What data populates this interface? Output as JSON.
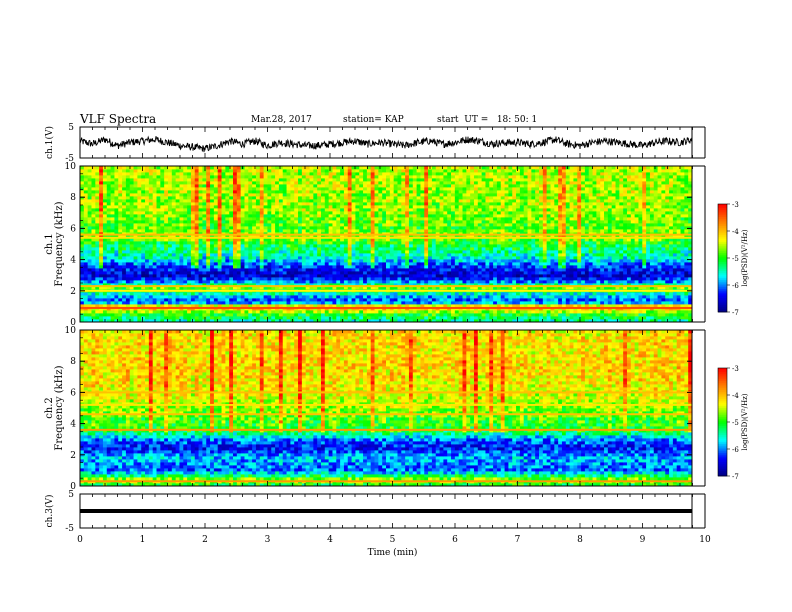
{
  "header": {
    "title": "VLF Spectra",
    "date": "Mar.28, 2017",
    "station": "station= KAP",
    "start": "start  UT =   18: 50: 1"
  },
  "chart_data": [
    {
      "type": "line",
      "panel": "ch1-waveform",
      "ylabel": "ch.1(V)",
      "ylim": [
        -5,
        5
      ],
      "yticks": [
        "5",
        "-5"
      ],
      "xlim": [
        0,
        10
      ],
      "series": [
        {
          "x": [
            0,
            0.2,
            0.4,
            0.6,
            0.8,
            1.0,
            1.2,
            1.4,
            1.6,
            1.8,
            2.0,
            2.2,
            2.4,
            2.6,
            2.8,
            3.0,
            3.2,
            3.4,
            3.6,
            3.8,
            4.0,
            4.2,
            4.4,
            4.6,
            4.8,
            5.0,
            5.2,
            5.4,
            5.6,
            5.8,
            6.0,
            6.2,
            6.4,
            6.6,
            6.8,
            7.0,
            7.2,
            7.4,
            7.6,
            7.8,
            8.0,
            8.2,
            8.4,
            8.6,
            8.8,
            9.0,
            9.2,
            9.4,
            9.6,
            9.8
          ],
          "y": [
            0.5,
            -0.5,
            1.0,
            -1.0,
            0.0,
            0.5,
            1.0,
            0.0,
            -1.0,
            -1.5,
            -2.0,
            -1.0,
            0.5,
            -0.5,
            0.5,
            -1.0,
            0.0,
            -0.5,
            -1.0,
            -1.0,
            -0.5,
            0.0,
            0.5,
            -0.5,
            0.0,
            -0.5,
            -1.0,
            0.0,
            0.5,
            -0.5,
            0.0,
            1.0,
            0.5,
            -0.5,
            0.0,
            0.0,
            -0.5,
            0.0,
            1.0,
            -0.5,
            -1.0,
            0.0,
            0.5,
            0.0,
            -0.5,
            -1.0,
            0.0,
            0.5,
            0.0,
            1.0
          ]
        }
      ]
    },
    {
      "type": "heatmap",
      "panel": "ch1-spectrogram",
      "ylabel": "ch.1 Frequency (kHz)",
      "ylim": [
        0,
        10
      ],
      "yticks": [
        "0",
        "2",
        "4",
        "6",
        "8",
        "10"
      ],
      "xlim": [
        0,
        10
      ],
      "colorbar": {
        "label": "log(PSD)(V²/Hz)",
        "range": [
          -7,
          -3
        ],
        "ticks": [
          "-3",
          "-4",
          "-5",
          "-6",
          "-7"
        ]
      },
      "profile": [
        {
          "f": 0.0,
          "v": -5.5
        },
        {
          "f": 0.5,
          "v": -5.0
        },
        {
          "f": 1.0,
          "v": -3.8
        },
        {
          "f": 1.3,
          "v": -6.3
        },
        {
          "f": 1.8,
          "v": -5.6
        },
        {
          "f": 2.2,
          "v": -4.7
        },
        {
          "f": 2.5,
          "v": -5.8
        },
        {
          "f": 3.0,
          "v": -6.6
        },
        {
          "f": 3.6,
          "v": -6.2
        },
        {
          "f": 4.2,
          "v": -5.5
        },
        {
          "f": 5.0,
          "v": -5.1
        },
        {
          "f": 5.5,
          "v": -4.6
        },
        {
          "f": 6.0,
          "v": -4.8
        },
        {
          "f": 7.5,
          "v": -4.6
        },
        {
          "f": 10.0,
          "v": -4.5
        }
      ],
      "bands": [
        {
          "f": 0.9,
          "v": -3.4
        },
        {
          "f": 2.3,
          "v": -4.0
        },
        {
          "f": 5.4,
          "v": -4.2
        },
        {
          "f": 5.6,
          "v": -4.0
        },
        {
          "f": 2.0,
          "v": -4.3
        }
      ]
    },
    {
      "type": "heatmap",
      "panel": "ch2-spectrogram",
      "ylabel": "ch.2 Frequency (kHz)",
      "ylim": [
        0,
        10
      ],
      "yticks": [
        "0",
        "2",
        "4",
        "6",
        "8",
        "10"
      ],
      "xlim": [
        0,
        10
      ],
      "colorbar": {
        "label": "log(PSD)(V²/Hz)",
        "range": [
          -7,
          -3
        ],
        "ticks": [
          "-3",
          "-4",
          "-5",
          "-6",
          "-7"
        ]
      },
      "profile": [
        {
          "f": 0.0,
          "v": -5.2
        },
        {
          "f": 0.4,
          "v": -4.5
        },
        {
          "f": 1.0,
          "v": -6.1
        },
        {
          "f": 1.8,
          "v": -5.8
        },
        {
          "f": 2.5,
          "v": -6.4
        },
        {
          "f": 3.0,
          "v": -6.0
        },
        {
          "f": 3.6,
          "v": -5.0
        },
        {
          "f": 4.2,
          "v": -4.9
        },
        {
          "f": 5.0,
          "v": -4.6
        },
        {
          "f": 6.0,
          "v": -4.3
        },
        {
          "f": 7.5,
          "v": -4.1
        },
        {
          "f": 10.0,
          "v": -4.2
        }
      ],
      "bands": [
        {
          "f": 3.6,
          "v": -3.8
        },
        {
          "f": 5.2,
          "v": -4.2
        },
        {
          "f": 6.0,
          "v": -4.0
        },
        {
          "f": 4.6,
          "v": -4.0
        },
        {
          "f": 0.3,
          "v": -3.8
        }
      ]
    },
    {
      "type": "line",
      "panel": "ch3-waveform",
      "ylabel": "ch.3(V)",
      "ylim": [
        -5,
        5
      ],
      "yticks": [
        "5",
        "-5"
      ],
      "xlim": [
        0,
        10
      ],
      "series": [
        {
          "x": [
            0,
            9.8
          ],
          "y": [
            0,
            0
          ]
        }
      ],
      "xlabel": "Time  (min)",
      "xticks": [
        "0",
        "1",
        "2",
        "3",
        "4",
        "5",
        "6",
        "7",
        "8",
        "9",
        "10"
      ]
    }
  ],
  "colors": {
    "scale": [
      "#000080",
      "#0000ff",
      "#00ffff",
      "#00ff00",
      "#ffff00",
      "#ff8000",
      "#ff0000"
    ]
  }
}
